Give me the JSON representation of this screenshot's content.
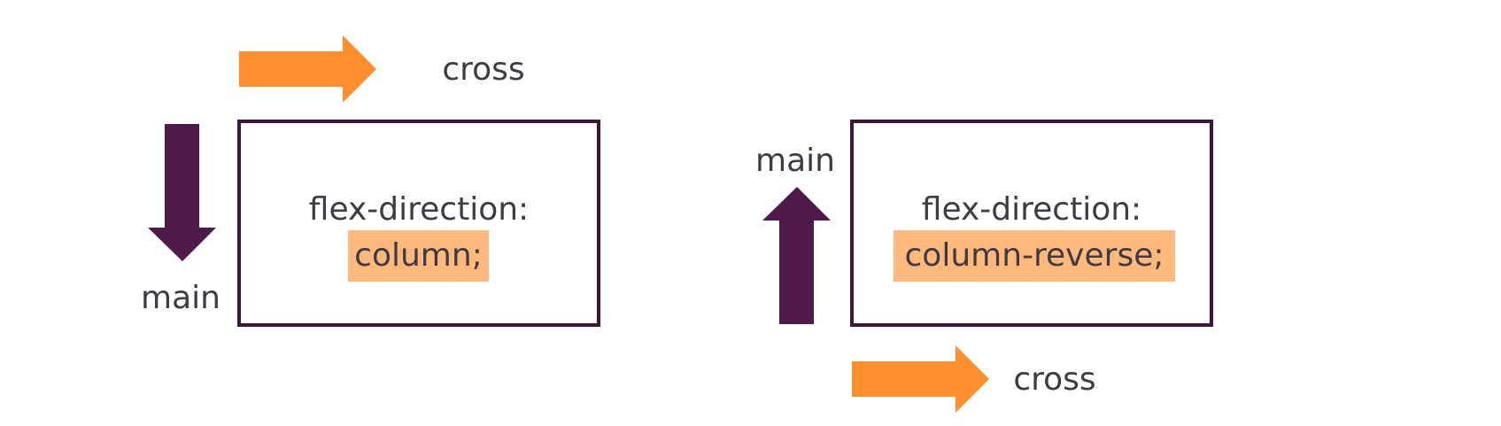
{
  "colors": {
    "cross_arrow": "#ff8f2c",
    "main_arrow": "#4e1a49",
    "box_border": "#3d1638",
    "highlight": "#ffb97d",
    "text": "#3f3a44"
  },
  "panels": [
    {
      "property": "flex-direction:",
      "value": "column;",
      "main_label": "main",
      "main_arrow_direction": "down",
      "cross_label": "cross",
      "cross_arrow_direction": "right"
    },
    {
      "property": "flex-direction:",
      "value": "column-reverse;",
      "main_label": "main",
      "main_arrow_direction": "up",
      "cross_label": "cross",
      "cross_arrow_direction": "right"
    }
  ]
}
